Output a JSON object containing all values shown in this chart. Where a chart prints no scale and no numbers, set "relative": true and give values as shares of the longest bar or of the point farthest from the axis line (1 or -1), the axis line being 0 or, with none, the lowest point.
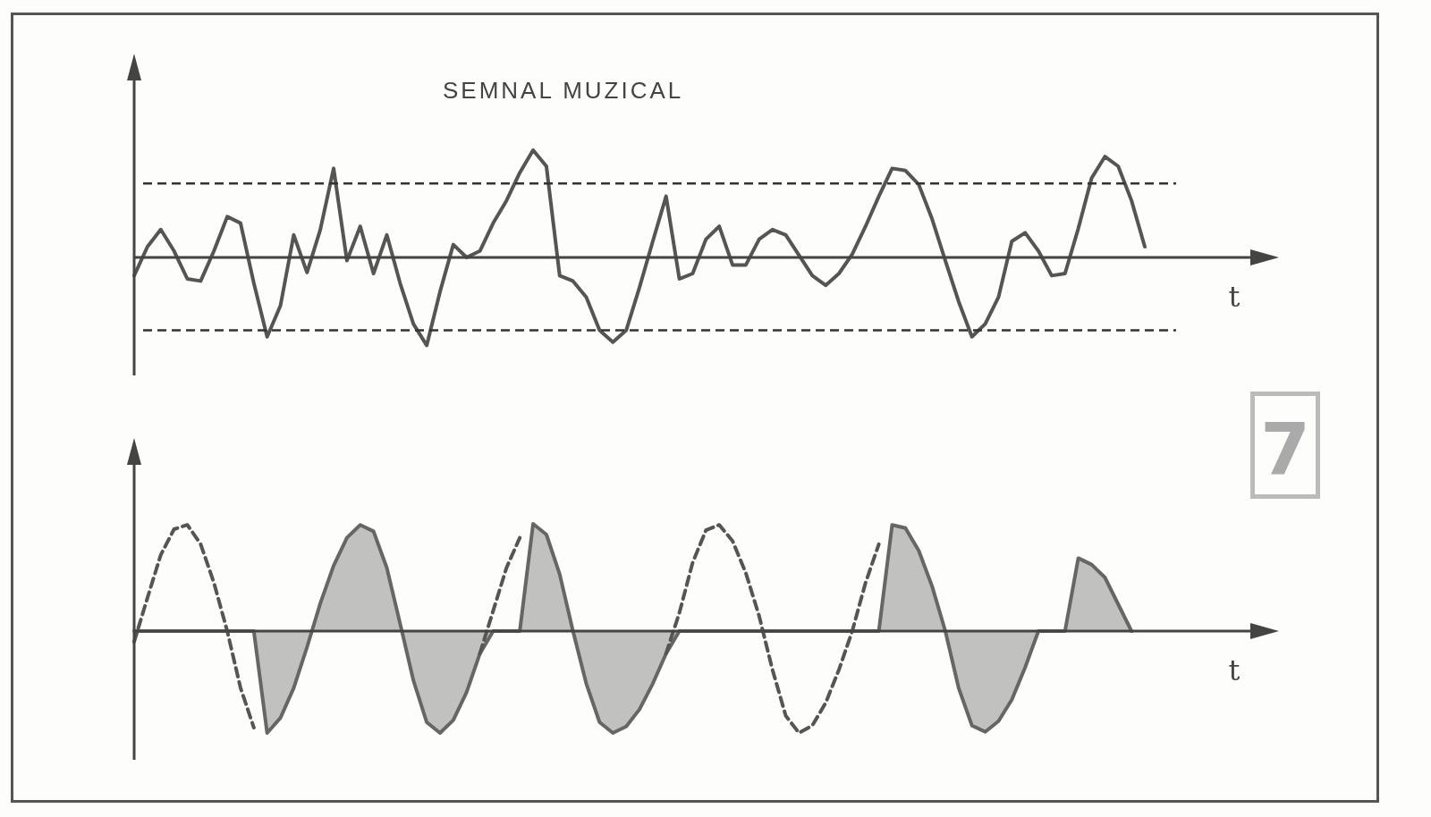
{
  "chart_data": [
    {
      "type": "line",
      "title": "SEMNAL MUZICAL",
      "xlabel": "t",
      "relative": true,
      "marker": "none",
      "line_style": "solid",
      "categories": [
        null,
        null,
        null,
        null,
        null,
        null,
        null,
        null,
        null,
        null,
        null,
        null,
        null,
        null,
        null,
        null,
        null,
        null,
        null,
        null,
        null,
        null,
        null,
        null,
        null,
        null,
        null,
        null,
        null,
        null,
        null,
        null,
        null,
        null,
        null,
        null,
        null,
        null,
        null,
        null,
        null,
        null,
        null,
        null,
        null,
        null,
        null,
        null,
        null,
        null,
        null,
        null,
        null,
        null,
        null,
        null,
        null,
        null,
        null,
        null,
        null,
        null,
        null,
        null,
        null,
        null,
        null,
        null,
        null,
        null,
        null,
        null,
        null,
        null,
        null,
        null,
        null
      ],
      "series": [
        {
          "color": "#555555",
          "values": [
            -0.17,
            0.1,
            0.26,
            0.06,
            -0.2,
            -0.22,
            0.06,
            0.38,
            0.32,
            -0.24,
            -0.74,
            -0.45,
            0.21,
            -0.14,
            0.26,
            0.83,
            -0.03,
            0.29,
            -0.15,
            0.21,
            -0.24,
            -0.62,
            -0.82,
            -0.32,
            0.12,
            0,
            0.06,
            0.32,
            0.53,
            0.79,
            1.0,
            0.85,
            -0.17,
            -0.22,
            -0.37,
            -0.68,
            -0.79,
            -0.68,
            -0.28,
            0.15,
            0.57,
            -0.2,
            -0.15,
            0.17,
            0.29,
            -0.07,
            -0.07,
            0.17,
            0.26,
            0.21,
            0.02,
            -0.17,
            -0.26,
            -0.15,
            0.03,
            0.29,
            0.57,
            0.83,
            0.81,
            0.68,
            0.36,
            -0.03,
            -0.41,
            -0.74,
            -0.62,
            -0.37,
            0.15,
            0.23,
            0.06,
            -0.17,
            -0.15,
            0.27,
            0.74,
            0.94,
            0.85,
            0.53,
            0.1
          ]
        }
      ],
      "ref_lines": [
        {
          "axis": "y",
          "value": 0.69,
          "color": "#333333",
          "line_style": "dashed"
        },
        {
          "axis": "y",
          "value": -0.68,
          "color": "#333333",
          "line_style": "dashed"
        }
      ]
    },
    {
      "type": "line",
      "xlabel": "t",
      "relative": true,
      "marker": "none",
      "annotations": [
        "7"
      ],
      "categories": [
        null,
        null,
        null,
        null,
        null,
        null,
        null,
        null,
        null,
        null,
        null,
        null,
        null,
        null,
        null,
        null,
        null,
        null,
        null,
        null,
        null,
        null,
        null,
        null,
        null,
        null,
        null,
        null,
        null,
        null,
        null,
        null,
        null,
        null,
        null,
        null,
        null,
        null,
        null,
        null,
        null,
        null,
        null,
        null,
        null,
        null,
        null,
        null,
        null,
        null,
        null,
        null,
        null,
        null,
        null,
        null,
        null,
        null,
        null,
        null,
        null,
        null,
        null,
        null,
        null,
        null,
        null,
        null,
        null,
        null,
        null,
        null,
        null,
        null,
        null,
        null,
        null
      ],
      "series": [
        {
          "type": "line",
          "line_style": "dashed",
          "color": "#555555",
          "values": [
            -0.1,
            0.31,
            0.71,
            0.95,
            0.99,
            0.81,
            0.45,
            0,
            -0.53,
            -0.9,
            null,
            null,
            null,
            null,
            null,
            null,
            null,
            null,
            null,
            null,
            null,
            null,
            null,
            null,
            null,
            null,
            -0.21,
            0.19,
            0.59,
            0.87,
            null,
            null,
            null,
            null,
            null,
            null,
            null,
            null,
            null,
            null,
            -0.21,
            0.17,
            0.64,
            0.94,
            0.99,
            0.84,
            0.54,
            0.14,
            -0.36,
            -0.79,
            -0.95,
            -0.88,
            -0.67,
            -0.36,
            0,
            0.45,
            0.81,
            null,
            null,
            null,
            null,
            null,
            null,
            null,
            null,
            null,
            null,
            null,
            null,
            null,
            null,
            null,
            null,
            null,
            null,
            null,
            null
          ]
        },
        {
          "type": "area",
          "line_style": "solid",
          "color": "#666666",
          "values": [
            0,
            0,
            0,
            0,
            0,
            0,
            0,
            0,
            0,
            0,
            -0.95,
            -0.81,
            -0.53,
            -0.15,
            0.26,
            0.61,
            0.87,
            0.99,
            0.93,
            0.59,
            0.07,
            -0.46,
            -0.85,
            -0.95,
            -0.83,
            -0.57,
            -0.21,
            0,
            0,
            0,
            1.0,
            0.9,
            0.53,
            0,
            -0.49,
            -0.85,
            -0.95,
            -0.89,
            -0.73,
            -0.49,
            -0.21,
            0,
            0,
            0,
            0,
            0,
            0,
            0,
            0,
            0,
            0,
            0,
            0,
            0,
            0,
            0,
            0,
            0.99,
            0.96,
            0.75,
            0.42,
            0,
            -0.53,
            -0.88,
            -0.94,
            -0.84,
            -0.64,
            -0.34,
            0,
            0,
            0,
            0.68,
            0.62,
            0.5,
            0.25,
            0,
            null
          ]
        }
      ]
    }
  ]
}
